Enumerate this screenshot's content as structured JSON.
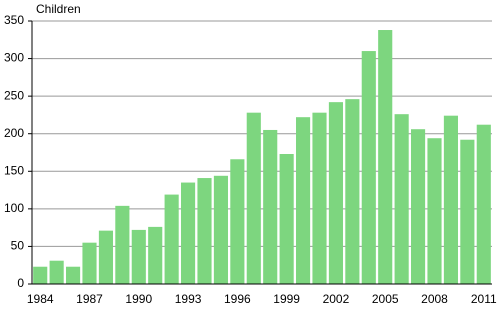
{
  "chart_data": {
    "type": "bar",
    "y_label": "Children",
    "categories": [
      "1984",
      null,
      null,
      "1987",
      null,
      null,
      "1990",
      null,
      null,
      "1993",
      null,
      null,
      "1996",
      null,
      null,
      "1999",
      null,
      null,
      "2002",
      null,
      null,
      "2005",
      null,
      null,
      "2008",
      null,
      null,
      "2011"
    ],
    "values": [
      23,
      31,
      23,
      55,
      71,
      104,
      72,
      76,
      119,
      135,
      141,
      144,
      166,
      228,
      205,
      173,
      222,
      228,
      242,
      246,
      310,
      338,
      226,
      206,
      194,
      224,
      192,
      212
    ],
    "color": "#7dd67f",
    "ylim": [
      0,
      350
    ],
    "yticks": [
      0,
      50,
      100,
      150,
      200,
      250,
      300,
      350
    ],
    "grid": true
  }
}
